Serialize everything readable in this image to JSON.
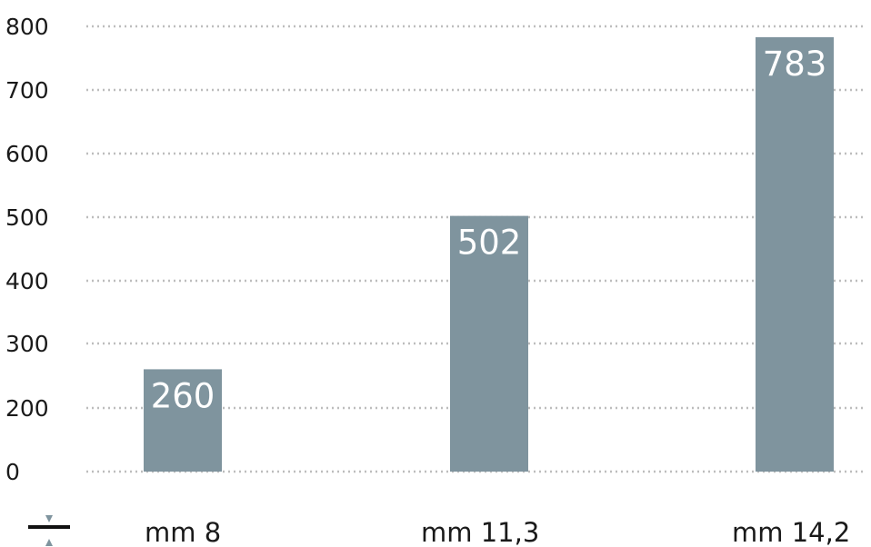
{
  "chart_data": {
    "type": "bar",
    "categories": [
      "mm 8",
      "mm 11,3",
      "mm 14,2"
    ],
    "values": [
      260,
      502,
      783
    ],
    "data_labels": [
      "260",
      "502",
      "783"
    ],
    "y_ticks": [
      0,
      200,
      300,
      400,
      500,
      600,
      700,
      800
    ],
    "y_tick_labels": [
      "0",
      "200",
      "300",
      "400",
      "500",
      "600",
      "700",
      "800"
    ],
    "ylim": [
      0,
      800
    ],
    "title": "",
    "xlabel": "",
    "ylabel": "",
    "grid": true,
    "legend": "none",
    "bar_color": "#7f949e",
    "label_color": "#ffffff",
    "axis_icon": "compression-thickness-icon",
    "icon_color": "#7f949e"
  }
}
